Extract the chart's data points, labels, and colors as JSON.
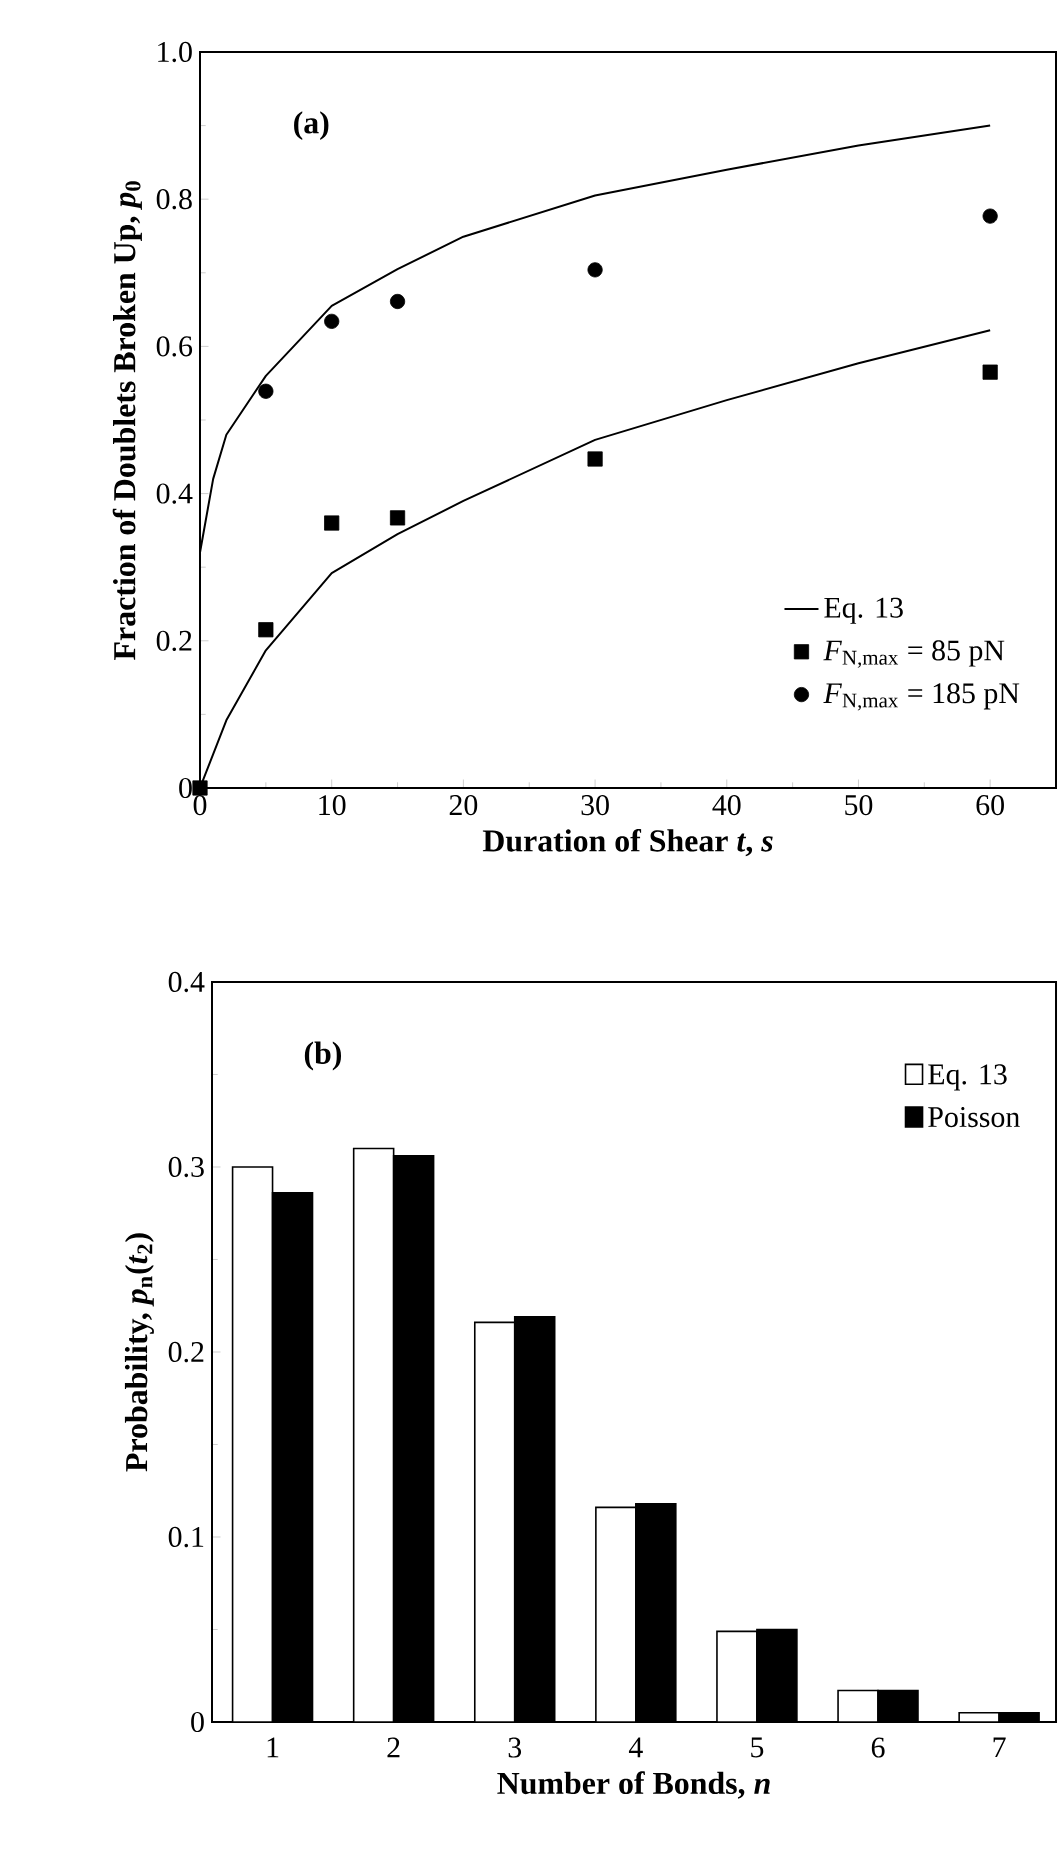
{
  "chart_data": [
    {
      "type": "line",
      "annotations": [
        "(a)"
      ],
      "xlabel": "Duration of Shear  *t*, *s*",
      "ylabel": "Fraction of Doublets Broken Up,  *p*$_{0}$",
      "xlim": [
        0,
        65
      ],
      "ylim": [
        0,
        1
      ],
      "xticks": [
        0,
        10,
        20,
        30,
        40,
        50,
        60
      ],
      "yticks": [
        0,
        0.2,
        0.4,
        0.6,
        0.8,
        {
          "value": 1,
          "label": "1.0"
        }
      ],
      "legend": "bottom right",
      "series": [
        {
          "type": "line",
          "name": "Eq. 13",
          "color": "#000000",
          "marker": "none",
          "x": [
            0,
            0,
            1,
            2,
            5,
            10,
            15,
            20,
            30,
            40,
            50,
            60
          ],
          "values": [
            0,
            0.32,
            0.42,
            0.48,
            0.56,
            0.655,
            0.705,
            0.749,
            0.805,
            0.84,
            0.873,
            0.9
          ]
        },
        {
          "type": "line",
          "color": "#000000",
          "marker": "none",
          "x": [
            0,
            2,
            5,
            10,
            15,
            20,
            30,
            40,
            50,
            60
          ],
          "values": [
            0,
            0.092,
            0.187,
            0.292,
            0.345,
            0.39,
            0.473,
            0.527,
            0.577,
            0.622
          ]
        },
        {
          "type": "scatter",
          "name": "*F*$_{N,max}$ =  85 pN",
          "color": "#000000",
          "marker": "square",
          "x": [
            0,
            5,
            10,
            15,
            30,
            60
          ],
          "values": [
            0,
            0.215,
            0.36,
            0.367,
            0.447,
            0.565
          ]
        },
        {
          "type": "scatter",
          "name": "*F*$_{N,max}$ =  185 pN",
          "color": "#000000",
          "marker": "circle",
          "x": [
            5,
            10,
            15,
            30,
            60
          ],
          "values": [
            0.539,
            0.634,
            0.661,
            0.704,
            0.777
          ]
        }
      ]
    },
    {
      "type": "bar",
      "annotations": [
        "(b)"
      ],
      "xlabel": "Number of Bonds,  *n*",
      "ylabel": "Probability,  *p*$_{n}$(*t*$_{2}$)",
      "categories": [
        "1",
        "2",
        "3",
        "4",
        "5",
        "6",
        "7"
      ],
      "ylim": [
        0,
        0.4
      ],
      "yticks": [
        0,
        0.1,
        0.2,
        0.3,
        0.4
      ],
      "legend": "top right",
      "series": [
        {
          "name": "Eq. 13",
          "color": "#ffffff",
          "values": [
            0.3,
            0.31,
            0.216,
            0.116,
            0.049,
            0.017,
            0.005
          ]
        },
        {
          "name": "Poisson",
          "color": "#000000",
          "values": [
            0.286,
            0.306,
            0.219,
            0.118,
            0.05,
            0.017,
            0.005
          ]
        }
      ]
    }
  ]
}
